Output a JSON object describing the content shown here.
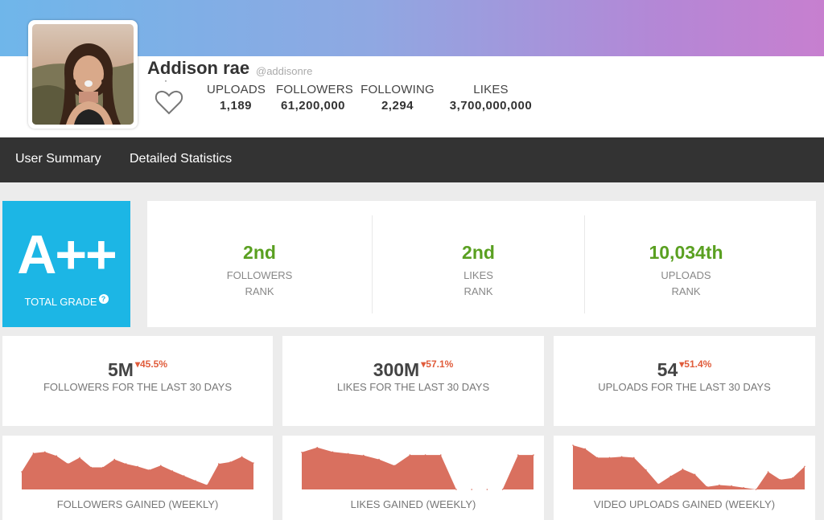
{
  "profile": {
    "name": "Addison rae",
    "handle": "@addisonre",
    "stats": [
      {
        "label": "UPLOADS",
        "value": "1,189"
      },
      {
        "label": "FOLLOWERS",
        "value": "61,200,000"
      },
      {
        "label": "FOLLOWING",
        "value": "2,294"
      },
      {
        "label": "LIKES",
        "value": "3,700,000,000"
      }
    ]
  },
  "nav": {
    "items": [
      "User Summary",
      "Detailed Statistics"
    ]
  },
  "grade": {
    "value": "A++",
    "label": "TOTAL GRADE",
    "help_icon": "?"
  },
  "ranks": [
    {
      "value": "2nd",
      "label1": "FOLLOWERS",
      "label2": "RANK"
    },
    {
      "value": "2nd",
      "label1": "LIKES",
      "label2": "RANK"
    },
    {
      "value": "10,034th",
      "label1": "UPLOADS",
      "label2": "RANK"
    }
  ],
  "summary": [
    {
      "value": "5M",
      "change": "45.5%",
      "label": "FOLLOWERS FOR THE LAST 30 DAYS"
    },
    {
      "value": "300M",
      "change": "57.1%",
      "label": "LIKES FOR THE LAST 30 DAYS"
    },
    {
      "value": "54",
      "change": "51.4%",
      "label": "UPLOADS FOR THE LAST 30 DAYS"
    }
  ],
  "colors": {
    "banner_start": "#6fb6ea",
    "banner_end": "#c77fcf",
    "grade_bg": "#1cb6e5",
    "rank_green": "#5aa021",
    "decrease_red": "#e05c3b",
    "chart_fill": "#d9705f",
    "navbar": "#333333"
  },
  "chart_data": [
    {
      "type": "area",
      "title": "FOLLOWERS GAINED (WEEKLY)",
      "values": [
        0.4,
        0.82,
        0.85,
        0.76,
        0.58,
        0.72,
        0.5,
        0.5,
        0.68,
        0.58,
        0.52,
        0.44,
        0.54,
        0.42,
        0.31,
        0.2,
        0.1,
        0.58,
        0.62,
        0.74,
        0.6
      ],
      "ylim": [
        0,
        1
      ]
    },
    {
      "type": "area",
      "title": "LIKES GAINED (WEEKLY)",
      "values": [
        0.84,
        0.95,
        0.85,
        0.81,
        0.77,
        0.68,
        0.54,
        0.78,
        0.78,
        0.78,
        0.0,
        0.0,
        0.0,
        0.0,
        0.78,
        0.78
      ],
      "ylim": [
        0,
        1
      ]
    },
    {
      "type": "area",
      "title": "VIDEO UPLOADS GAINED (WEEKLY)",
      "values": [
        1.0,
        0.92,
        0.72,
        0.72,
        0.74,
        0.72,
        0.44,
        0.12,
        0.3,
        0.46,
        0.34,
        0.06,
        0.1,
        0.08,
        0.04,
        0.0,
        0.4,
        0.22,
        0.26,
        0.52
      ],
      "ylim": [
        0,
        1
      ]
    }
  ]
}
